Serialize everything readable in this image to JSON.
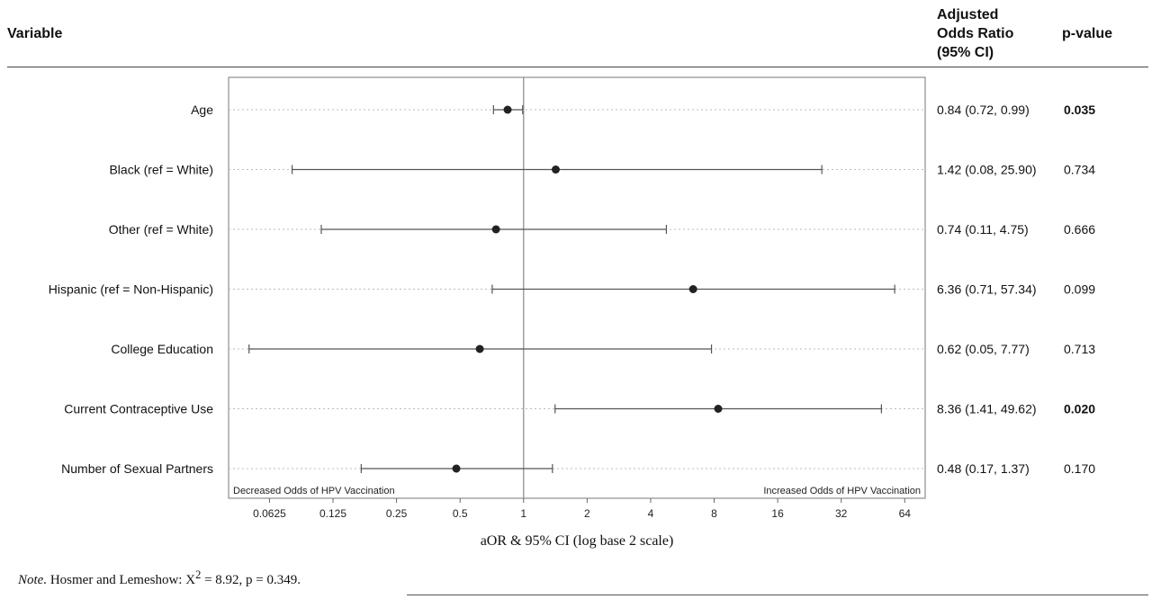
{
  "header": {
    "variable_label": "Variable",
    "aor_label_lines": [
      "Adjusted",
      "Odds Ratio",
      "(95% CI)"
    ],
    "pvalue_label": "p-value"
  },
  "chart_data": {
    "type": "scatter",
    "subtype": "forest-plot",
    "xlabel": "aOR & 95% CI (log base 2 scale)",
    "x_scale": "log2",
    "xlim": [
      0.04,
      80
    ],
    "x_ticks": [
      "0.0625",
      "0.125",
      "0.25",
      "0.5",
      "1",
      "2",
      "4",
      "8",
      "16",
      "32",
      "64"
    ],
    "x_tick_values": [
      0.0625,
      0.125,
      0.25,
      0.5,
      1,
      2,
      4,
      8,
      16,
      32,
      64
    ],
    "reference_line": 1,
    "left_annotation": "Decreased Odds of HPV Vaccination",
    "right_annotation": "Increased Odds of HPV Vaccination",
    "grid": "horizontal dotted",
    "rows": [
      {
        "label": "Age",
        "aor": 0.84,
        "lower": 0.72,
        "upper": 0.99,
        "ci_text": "0.84 (0.72, 0.99)",
        "p": "0.035",
        "significant": true
      },
      {
        "label": "Black (ref = White)",
        "aor": 1.42,
        "lower": 0.08,
        "upper": 25.9,
        "ci_text": "1.42 (0.08, 25.90)",
        "p": "0.734",
        "significant": false
      },
      {
        "label": "Other (ref = White)",
        "aor": 0.74,
        "lower": 0.11,
        "upper": 4.75,
        "ci_text": "0.74 (0.11, 4.75)",
        "p": "0.666",
        "significant": false
      },
      {
        "label": "Hispanic (ref = Non-Hispanic)",
        "aor": 6.36,
        "lower": 0.71,
        "upper": 57.34,
        "ci_text": "6.36 (0.71, 57.34)",
        "p": "0.099",
        "significant": false
      },
      {
        "label": "College Education",
        "aor": 0.62,
        "lower": 0.05,
        "upper": 7.77,
        "ci_text": "0.62 (0.05, 7.77)",
        "p": "0.713",
        "significant": false
      },
      {
        "label": "Current Contraceptive Use",
        "aor": 8.36,
        "lower": 1.41,
        "upper": 49.62,
        "ci_text": "8.36 (1.41, 49.62)",
        "p": "0.020",
        "significant": true
      },
      {
        "label": "Number of Sexual Partners",
        "aor": 0.48,
        "lower": 0.17,
        "upper": 1.37,
        "ci_text": "0.48 (0.17, 1.37)",
        "p": "0.170",
        "significant": false
      }
    ]
  },
  "note": {
    "label": "Note.",
    "text_before": " Hosmer and Lemeshow: X",
    "superscript": "2",
    "text_after": " = 8.92, p = 0.349."
  }
}
